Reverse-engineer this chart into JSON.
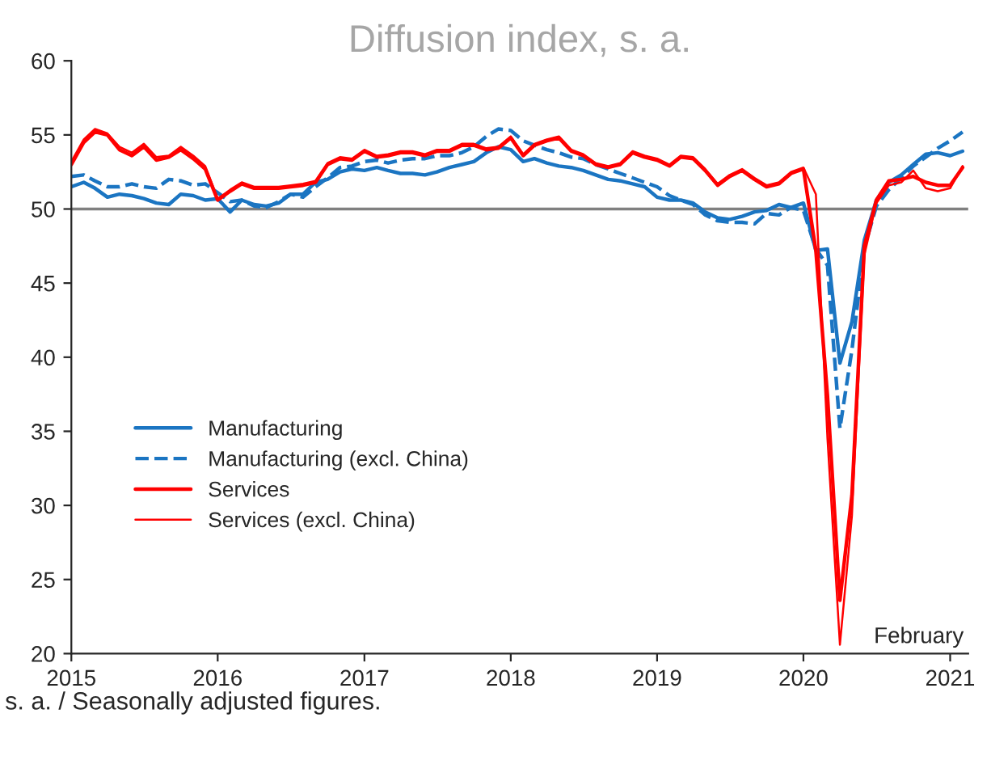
{
  "chart_data": {
    "type": "line",
    "title": "Diffusion index, s. a.",
    "x": [
      "2015-01",
      "2015-02",
      "2015-03",
      "2015-04",
      "2015-05",
      "2015-06",
      "2015-07",
      "2015-08",
      "2015-09",
      "2015-10",
      "2015-11",
      "2015-12",
      "2016-01",
      "2016-02",
      "2016-03",
      "2016-04",
      "2016-05",
      "2016-06",
      "2016-07",
      "2016-08",
      "2016-09",
      "2016-10",
      "2016-11",
      "2016-12",
      "2017-01",
      "2017-02",
      "2017-03",
      "2017-04",
      "2017-05",
      "2017-06",
      "2017-07",
      "2017-08",
      "2017-09",
      "2017-10",
      "2017-11",
      "2017-12",
      "2018-01",
      "2018-02",
      "2018-03",
      "2018-04",
      "2018-05",
      "2018-06",
      "2018-07",
      "2018-08",
      "2018-09",
      "2018-10",
      "2018-11",
      "2018-12",
      "2019-01",
      "2019-02",
      "2019-03",
      "2019-04",
      "2019-05",
      "2019-06",
      "2019-07",
      "2019-08",
      "2019-09",
      "2019-10",
      "2019-11",
      "2019-12",
      "2020-01",
      "2020-02",
      "2020-03",
      "2020-04",
      "2020-05",
      "2020-06",
      "2020-07",
      "2020-08",
      "2020-09",
      "2020-10",
      "2020-11",
      "2020-12",
      "2021-01",
      "2021-02"
    ],
    "series": [
      {
        "name": "Manufacturing",
        "color": "#1b75c2",
        "line_style": "solid",
        "values": [
          51.5,
          51.8,
          51.4,
          50.8,
          51.0,
          50.9,
          50.7,
          50.4,
          50.3,
          51.0,
          50.9,
          50.6,
          50.7,
          49.8,
          50.6,
          50.3,
          50.2,
          50.4,
          51.0,
          51.0,
          51.8,
          52.0,
          52.5,
          52.7,
          52.6,
          52.8,
          52.6,
          52.4,
          52.4,
          52.3,
          52.5,
          52.8,
          53.0,
          53.2,
          53.8,
          54.2,
          54.0,
          53.2,
          53.4,
          53.1,
          52.9,
          52.8,
          52.6,
          52.3,
          52.0,
          51.9,
          51.7,
          51.5,
          50.8,
          50.6,
          50.6,
          50.4,
          49.8,
          49.4,
          49.3,
          49.5,
          49.8,
          49.9,
          50.3,
          50.1,
          50.4,
          47.2,
          47.3,
          39.6,
          42.4,
          47.9,
          50.6,
          51.8,
          52.3,
          53.0,
          53.7,
          53.8,
          53.6,
          53.9
        ]
      },
      {
        "name": "Manufacturing (excl. China)",
        "color": "#1b75c2",
        "line_style": "dashed",
        "values": [
          52.2,
          52.3,
          51.9,
          51.5,
          51.5,
          51.7,
          51.5,
          51.4,
          52.0,
          51.9,
          51.6,
          51.7,
          51.1,
          50.5,
          50.6,
          50.2,
          50.1,
          50.5,
          51.0,
          50.8,
          51.5,
          52.1,
          52.8,
          52.9,
          53.2,
          53.3,
          53.1,
          53.3,
          53.4,
          53.4,
          53.6,
          53.6,
          53.8,
          54.2,
          54.9,
          55.4,
          55.3,
          54.6,
          54.3,
          54.0,
          53.8,
          53.5,
          53.4,
          53.0,
          52.7,
          52.4,
          52.1,
          51.8,
          51.5,
          50.9,
          50.6,
          50.3,
          49.6,
          49.2,
          49.1,
          49.1,
          49.0,
          49.7,
          49.6,
          50.1,
          49.9,
          47.3,
          46.2,
          35.2,
          40.5,
          47.4,
          50.2,
          51.3,
          52.1,
          52.9,
          53.5,
          54.1,
          54.6,
          55.2
        ]
      },
      {
        "name": "Services",
        "color": "#ff0000",
        "line_style": "solid",
        "values": [
          53.0,
          54.5,
          55.2,
          55.0,
          54.0,
          53.6,
          54.2,
          53.3,
          53.5,
          54.0,
          53.4,
          52.7,
          50.6,
          51.2,
          51.7,
          51.4,
          51.4,
          51.4,
          51.5,
          51.6,
          51.8,
          53.0,
          53.4,
          53.3,
          53.9,
          53.5,
          53.6,
          53.8,
          53.8,
          53.6,
          53.9,
          53.9,
          54.3,
          54.3,
          54.0,
          54.1,
          54.8,
          53.6,
          54.3,
          54.6,
          54.8,
          53.9,
          53.6,
          53.0,
          52.8,
          53.0,
          53.8,
          53.5,
          53.3,
          52.9,
          53.5,
          53.4,
          52.6,
          51.6,
          52.2,
          52.6,
          52.0,
          51.5,
          51.7,
          52.4,
          52.7,
          47.2,
          37.4,
          23.6,
          30.7,
          47.5,
          50.6,
          51.9,
          52.0,
          52.2,
          51.8,
          51.6,
          51.6,
          52.8
        ]
      },
      {
        "name": "Services (excl. China)",
        "color": "#ff0000",
        "line_style": "solid",
        "values": [
          53.2,
          54.7,
          55.4,
          55.1,
          54.2,
          53.8,
          54.4,
          53.5,
          53.6,
          54.2,
          53.6,
          52.9,
          50.7,
          51.3,
          51.8,
          51.5,
          51.5,
          51.5,
          51.6,
          51.7,
          51.9,
          53.1,
          53.5,
          53.4,
          54.0,
          53.6,
          53.7,
          53.9,
          53.9,
          53.7,
          54.0,
          54.0,
          54.4,
          54.4,
          54.1,
          54.2,
          54.9,
          53.7,
          54.4,
          54.7,
          54.9,
          54.0,
          53.7,
          53.1,
          52.9,
          53.1,
          53.9,
          53.6,
          53.4,
          53.0,
          53.6,
          53.5,
          52.7,
          51.7,
          52.3,
          52.7,
          52.1,
          51.6,
          51.8,
          52.5,
          52.8,
          51.0,
          34.5,
          20.6,
          29.3,
          46.9,
          50.4,
          51.6,
          51.8,
          52.6,
          51.4,
          51.2,
          51.4,
          52.9
        ]
      }
    ],
    "ylim": [
      20,
      60
    ],
    "yticks": [
      20,
      25,
      30,
      35,
      40,
      45,
      50,
      55,
      60
    ],
    "xlim": [
      "2015-01-01",
      "2021-02-15"
    ],
    "xticks": [
      "2015",
      "2016",
      "2017",
      "2018",
      "2019",
      "2020",
      "2021"
    ],
    "ref_lines": [
      {
        "axis": "y",
        "value": 50,
        "color": "#808080"
      }
    ],
    "legend": "center left",
    "grid": false,
    "annotations": [
      "February",
      "s. a. / Seasonally adjusted figures."
    ]
  }
}
